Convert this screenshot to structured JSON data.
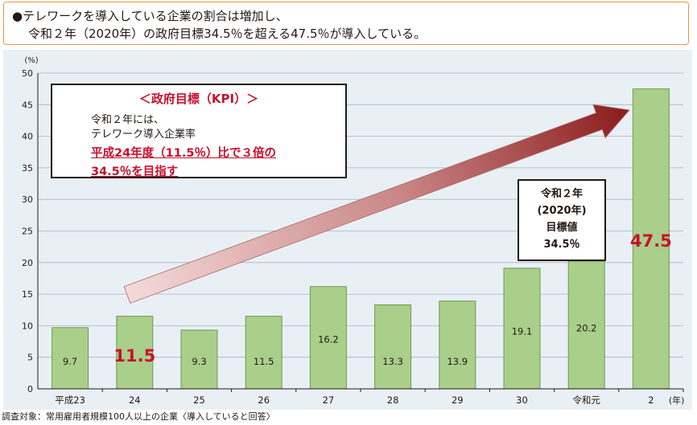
{
  "header": {
    "line1": "●テレワークを導入している企業の割合は増加し、",
    "line2": "令和２年（2020年）の政府目標34.5％を超える47.5％が導入している。"
  },
  "kpi_box": {
    "title": "＜政府目標（KPI）＞",
    "line1": "令和２年には、",
    "line2": "テレワーク導入企業率",
    "line3": "平成24年度（11.5％）比で３倍の",
    "line4": "34.5％を目指す"
  },
  "target_box": {
    "line1": "令和２年",
    "line2": "(2020年)",
    "line3": "目標値",
    "line4": "34.5％"
  },
  "footnote": "調査対象：常用雇用者規模100人以上の企業〈導入していると回答〉",
  "colors": {
    "bar_fill": "#a9cf8b",
    "bar_stroke": "#6e9a4f",
    "highlight": "#c8102e",
    "arrow_start": "#f2d0d0",
    "arrow_end": "#8b1c1c",
    "panel_bg": "#e9f0f5"
  },
  "chart_data": {
    "type": "bar",
    "categories": [
      "平成23",
      "24",
      "25",
      "26",
      "27",
      "28",
      "29",
      "30",
      "令和元",
      "2"
    ],
    "values": [
      9.7,
      11.5,
      9.3,
      11.5,
      16.2,
      13.3,
      13.9,
      19.1,
      20.2,
      47.5
    ],
    "value_labels": [
      "9.7",
      "11.5",
      "9.3",
      "11.5",
      "16.2",
      "13.3",
      "13.9",
      "19.1",
      "20.2",
      "47.5"
    ],
    "highlighted": [
      false,
      true,
      false,
      false,
      false,
      false,
      false,
      false,
      false,
      true
    ],
    "ylim": [
      0,
      50
    ],
    "yticks": [
      0,
      5,
      10,
      15,
      20,
      25,
      30,
      35,
      40,
      45,
      50
    ],
    "y_unit": "(%)",
    "x_unit": "(年)",
    "grid": "horizontal"
  }
}
